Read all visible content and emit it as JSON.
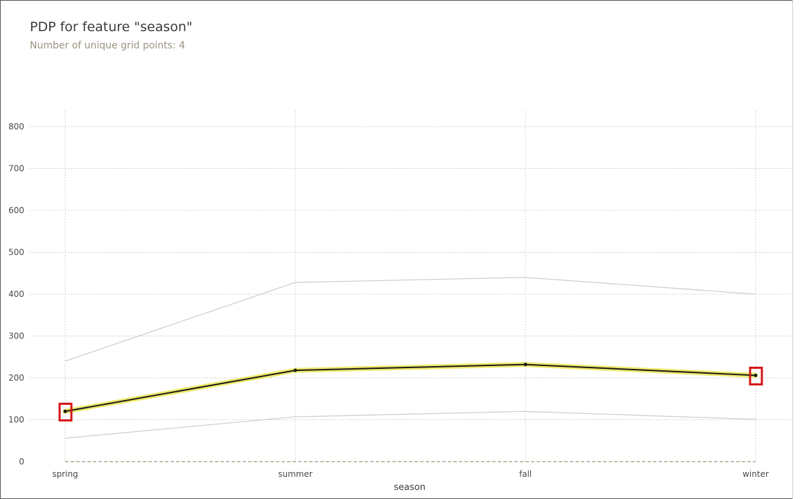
{
  "chart_data": {
    "type": "line",
    "title": "PDP for feature \"season\"",
    "subtitle": "Number of unique grid points: 4",
    "xlabel": "season",
    "ylabel": "",
    "categories": [
      "spring",
      "summer",
      "fall",
      "winter"
    ],
    "yticks": [
      0,
      100,
      200,
      300,
      400,
      500,
      600,
      700,
      800
    ],
    "ylim": [
      0,
      800
    ],
    "grid": true,
    "series": [
      {
        "values": [
          120,
          218,
          232,
          206
        ],
        "color": "#1a1a1a",
        "highlight": "#e8e23a"
      },
      {
        "values": [
          240,
          428,
          440,
          400
        ],
        "color": "#cfcfcf"
      },
      {
        "values": [
          56,
          107,
          120,
          101
        ],
        "color": "#cfcfcf"
      }
    ],
    "highlight_boxes": [
      {
        "category": "spring",
        "value": 120
      },
      {
        "category": "winter",
        "value": 206
      }
    ],
    "colors": {
      "grid": "#d0d0d0",
      "baseline": "#9a9a7a",
      "box": "#d41414"
    }
  }
}
